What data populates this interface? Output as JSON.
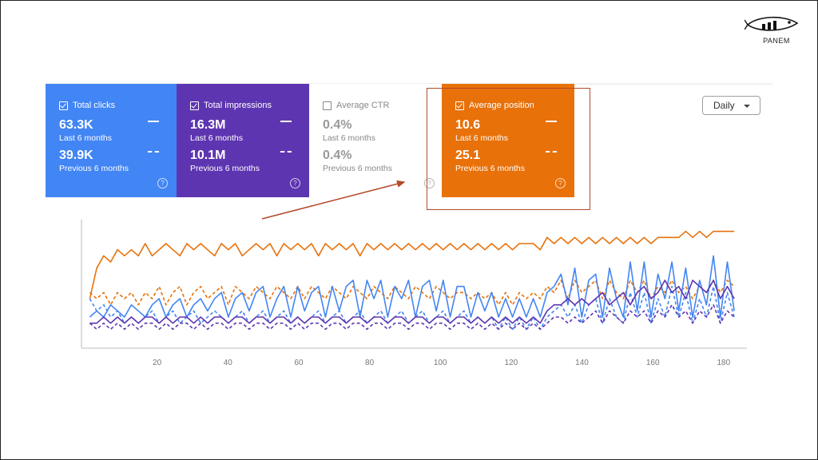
{
  "logo": {
    "text": "PANEM"
  },
  "cards": {
    "clicks": {
      "label": "Total clicks",
      "value": "63.3K",
      "period": "Last 6 months",
      "value_prev": "39.9K",
      "period_prev": "Previous 6 months",
      "checked": true,
      "color": "#4285f4"
    },
    "impressions": {
      "label": "Total impressions",
      "value": "16.3M",
      "period": "Last 6 months",
      "value_prev": "10.1M",
      "period_prev": "Previous 6 months",
      "checked": true,
      "color": "#5e35b1"
    },
    "ctr": {
      "label": "Average CTR",
      "value": "0.4%",
      "period": "Last 6 months",
      "value_prev": "0.4%",
      "period_prev": "Previous 6 months",
      "checked": false
    },
    "position": {
      "label": "Average position",
      "value": "10.6",
      "period": "Last 6 months",
      "value_prev": "25.1",
      "period_prev": "Previous 6 months",
      "checked": true,
      "color": "#e8710a"
    }
  },
  "help_glyph": "?",
  "range_select": {
    "value": "Daily"
  },
  "chart_data": {
    "type": "line",
    "x_ticks": [
      20,
      40,
      60,
      80,
      100,
      120,
      140,
      160,
      180
    ],
    "xlim": [
      0,
      185
    ],
    "grid": false,
    "series": [
      {
        "name": "Total clicks",
        "style": "solid",
        "color": "#4285f4",
        "values": [
          3,
          4,
          3,
          5,
          4,
          3,
          5,
          4,
          3,
          5,
          6,
          3,
          5,
          6,
          3,
          5,
          6,
          4,
          6,
          7,
          3,
          6,
          7,
          4,
          7,
          8,
          3,
          6,
          8,
          3,
          8,
          4,
          7,
          8,
          3,
          8,
          4,
          8,
          9,
          3,
          9,
          6,
          9,
          3,
          8,
          6,
          9,
          3,
          8,
          9,
          4,
          9,
          3,
          8,
          8,
          3,
          7,
          4,
          7,
          3,
          6,
          3,
          6,
          3,
          6,
          3,
          7,
          8,
          10,
          5,
          11,
          3,
          9,
          10,
          3,
          11,
          6,
          3,
          12,
          4,
          12,
          3,
          10,
          6,
          12,
          4,
          11,
          3,
          9,
          5,
          13,
          3,
          12,
          4
        ]
      },
      {
        "name": "Total impressions",
        "style": "solid",
        "color": "#5e35b1",
        "values": [
          2,
          2,
          3,
          2,
          3,
          2,
          3,
          2,
          3,
          3,
          2,
          3,
          2,
          3,
          3,
          2,
          3,
          2,
          3,
          3,
          2,
          3,
          3,
          2,
          3,
          3,
          2,
          3,
          3,
          2,
          3,
          2,
          3,
          3,
          2,
          3,
          3,
          2,
          3,
          3,
          2,
          3,
          3,
          2,
          3,
          3,
          2,
          3,
          3,
          2,
          3,
          3,
          2,
          3,
          3,
          2,
          3,
          2,
          3,
          2,
          3,
          2,
          3,
          2,
          3,
          2,
          4,
          5,
          5,
          6,
          5,
          6,
          5,
          6,
          7,
          5,
          6,
          7,
          5,
          7,
          8,
          6,
          7,
          9,
          7,
          8,
          6,
          9,
          8,
          7,
          9,
          6,
          8,
          6
        ]
      },
      {
        "name": "Average position",
        "style": "solid",
        "color": "#e8710a",
        "values": [
          6,
          11,
          13,
          12,
          14,
          13,
          14,
          13,
          15,
          13,
          14,
          15,
          14,
          13,
          15,
          14,
          15,
          14,
          13,
          15,
          14,
          15,
          13,
          14,
          15,
          14,
          15,
          13,
          15,
          14,
          15,
          14,
          15,
          13,
          15,
          14,
          15,
          14,
          15,
          13,
          15,
          14,
          15,
          14,
          15,
          14,
          15,
          14,
          15,
          14,
          15,
          14,
          15,
          14,
          15,
          14,
          15,
          14,
          15,
          14,
          15,
          14,
          15,
          15,
          15,
          14,
          16,
          15,
          16,
          15,
          16,
          15,
          16,
          15,
          16,
          15,
          16,
          15,
          16,
          15,
          16,
          15,
          16,
          16,
          16,
          16,
          17,
          16,
          17,
          16,
          17,
          17,
          17,
          17
        ]
      },
      {
        "name": "Total clicks (previous)",
        "style": "dashed",
        "color": "#4285f4",
        "values": [
          6,
          4,
          5,
          3,
          4,
          2,
          3,
          2,
          3,
          4,
          2,
          3,
          4,
          2,
          3,
          4,
          2,
          3,
          4,
          3,
          2,
          3,
          4,
          2,
          3,
          4,
          2,
          3,
          4,
          2,
          3,
          2,
          3,
          4,
          2,
          3,
          4,
          2,
          3,
          4,
          2,
          3,
          4,
          2,
          3,
          4,
          2,
          3,
          4,
          2,
          3,
          4,
          2,
          3,
          4,
          2,
          3,
          2,
          3,
          1,
          3,
          1,
          3,
          1,
          3,
          1,
          3,
          4,
          5,
          3,
          5,
          2,
          5,
          6,
          2,
          6,
          3,
          2,
          7,
          3,
          7,
          2,
          6,
          3,
          8,
          3,
          7,
          2,
          6,
          3,
          8,
          2,
          7,
          3
        ]
      },
      {
        "name": "Total impressions (previous)",
        "style": "dashed",
        "color": "#5e35b1",
        "values": [
          2,
          1,
          2,
          1,
          2,
          1,
          2,
          1,
          2,
          2,
          1,
          2,
          1,
          2,
          2,
          1,
          2,
          1,
          2,
          2,
          1,
          2,
          2,
          1,
          2,
          2,
          1,
          2,
          2,
          1,
          2,
          1,
          2,
          2,
          1,
          2,
          2,
          1,
          2,
          2,
          1,
          2,
          2,
          1,
          2,
          2,
          1,
          2,
          2,
          1,
          2,
          2,
          1,
          2,
          2,
          1,
          2,
          1,
          2,
          1,
          2,
          1,
          2,
          1,
          2,
          1,
          2,
          3,
          3,
          2,
          3,
          2,
          3,
          4,
          2,
          4,
          3,
          2,
          4,
          3,
          4,
          2,
          4,
          3,
          5,
          3,
          4,
          2,
          4,
          3,
          5,
          2,
          4,
          3
        ]
      },
      {
        "name": "Average position (previous)",
        "style": "dashed",
        "color": "#e8710a",
        "values": [
          7,
          6,
          7,
          5,
          7,
          6,
          7,
          5,
          7,
          6,
          8,
          5,
          7,
          8,
          5,
          7,
          8,
          6,
          7,
          8,
          5,
          8,
          7,
          6,
          8,
          7,
          6,
          8,
          7,
          6,
          8,
          6,
          8,
          7,
          6,
          8,
          7,
          6,
          8,
          7,
          6,
          8,
          7,
          6,
          8,
          7,
          6,
          8,
          7,
          6,
          8,
          7,
          6,
          7,
          7,
          6,
          7,
          6,
          7,
          5,
          7,
          5,
          7,
          6,
          7,
          6,
          8,
          7,
          9,
          6,
          9,
          7,
          8,
          9,
          6,
          9,
          7,
          6,
          9,
          7,
          9,
          6,
          8,
          7,
          9,
          7,
          8,
          6,
          8,
          7,
          9,
          7,
          9,
          8
        ]
      }
    ]
  }
}
